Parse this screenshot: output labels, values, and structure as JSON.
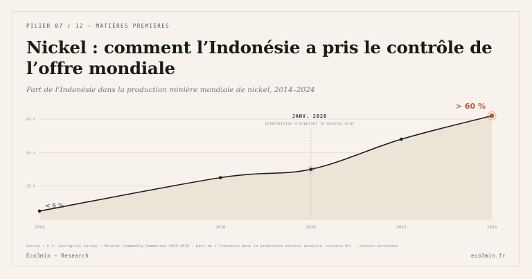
{
  "header": {
    "kicker": "PILIER 07 / 12 — MATIÈRES PREMIÈRES",
    "title": "Nickel : comment l’Indonésie a pris le contrôle de l’offre mondiale",
    "subtitle": "Part de l’Indonésie dans la production minière mondiale de nickel, 2014–2024"
  },
  "chart_data": {
    "type": "area",
    "x": [
      2014,
      2018,
      2020,
      2022,
      2024
    ],
    "values": [
      5,
      25,
      30,
      48,
      62
    ],
    "ylim": [
      0,
      65
    ],
    "xlim": [
      2014,
      2024
    ],
    "y_ticks": [
      {
        "value": 20,
        "label": "20 %"
      },
      {
        "value": 40,
        "label": "40 %"
      },
      {
        "value": 60,
        "label": "60 %"
      }
    ],
    "x_ticks": [
      "2014",
      "2018",
      "2020",
      "2022",
      "2024"
    ],
    "grid": true,
    "annotations": {
      "start_label": "< 6 %",
      "end_label": "> 60 %",
      "event": {
        "x": 2020,
        "title": "JANV. 2020",
        "text": "interdiction d’exporter le minerai brut"
      }
    },
    "colors": {
      "line": "#1f1f1f",
      "area": "#ece4d6",
      "accent": "#c0573a",
      "grid": "#e2dbcf",
      "event": "#b9b0a2"
    }
  },
  "footer": {
    "source": "Source : U.S. Geological Survey — Mineral Commodity Summaries 2020–2026 · part de l’Indonésie dans la production minière mondiale (contenu Ni) · valeurs arrondies",
    "brand": "Eco3min — Research",
    "url": "eco3min.fr"
  }
}
